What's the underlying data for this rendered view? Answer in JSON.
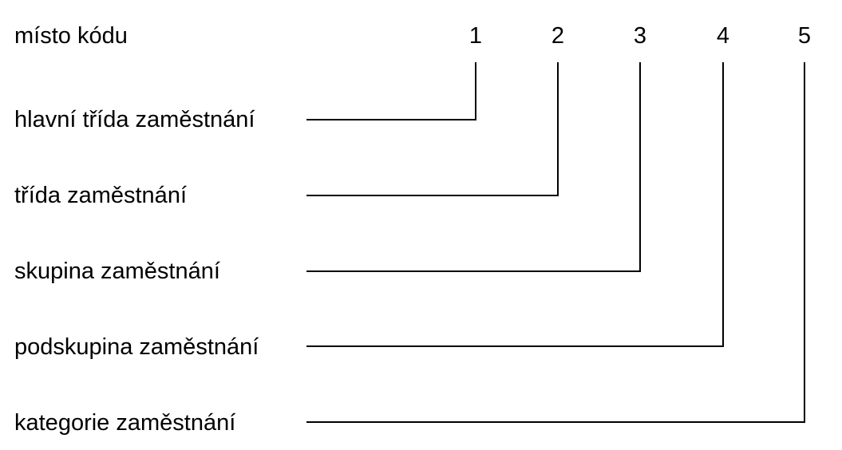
{
  "header": {
    "label": "místo kódu",
    "positions": [
      "1",
      "2",
      "3",
      "4",
      "5"
    ]
  },
  "levels": [
    {
      "label": "hlavní třída zaměstnání",
      "position": "1"
    },
    {
      "label": "třída zaměstnání",
      "position": "2"
    },
    {
      "label": "skupina zaměstnání",
      "position": "3"
    },
    {
      "label": "podskupina zaměstnání",
      "position": "4"
    },
    {
      "label": "kategorie zaměstnání",
      "position": "5"
    }
  ],
  "colors": {
    "text": "#000000",
    "line": "#000000",
    "background": "#ffffff"
  }
}
